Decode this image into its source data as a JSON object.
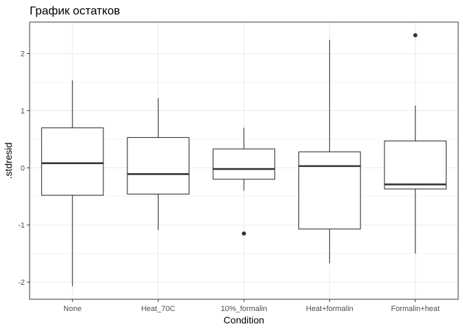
{
  "chart_data": {
    "type": "boxplot",
    "title": "График остатков",
    "xlabel": "Condition",
    "ylabel": ".stdresid",
    "categories": [
      "None",
      "Heat_70C",
      "10%_formalin",
      "Heat+formalin",
      "Formalin+heat"
    ],
    "ylim": [
      -2.3,
      2.55
    ],
    "yticks": [
      -2,
      -1,
      0,
      1,
      2
    ],
    "ytick_labels": [
      "-2",
      "-1",
      "0",
      "1",
      "2"
    ],
    "grid": true,
    "boxes": [
      {
        "category": "None",
        "whisker_low": -2.07,
        "q1": -0.48,
        "median": 0.08,
        "q3": 0.7,
        "whisker_high": 1.53,
        "outliers": []
      },
      {
        "category": "Heat_70C",
        "whisker_low": -1.09,
        "q1": -0.46,
        "median": -0.11,
        "q3": 0.53,
        "whisker_high": 1.22,
        "outliers": []
      },
      {
        "category": "10%_formalin",
        "whisker_low": -0.4,
        "q1": -0.2,
        "median": -0.02,
        "q3": 0.33,
        "whisker_high": 0.7,
        "outliers": [
          -1.15
        ]
      },
      {
        "category": "Heat+formalin",
        "whisker_low": -1.67,
        "q1": -1.07,
        "median": 0.03,
        "q3": 0.28,
        "whisker_high": 2.24,
        "outliers": []
      },
      {
        "category": "Formalin+heat",
        "whisker_low": -1.5,
        "q1": -0.37,
        "median": -0.29,
        "q3": 0.47,
        "whisker_high": 1.09,
        "outliers": [
          2.32
        ]
      }
    ],
    "colors": {
      "box_line": "#333333",
      "grid": "#ebebeb",
      "panel_border": "#333333",
      "tick_text": "#4d4d4d"
    }
  }
}
